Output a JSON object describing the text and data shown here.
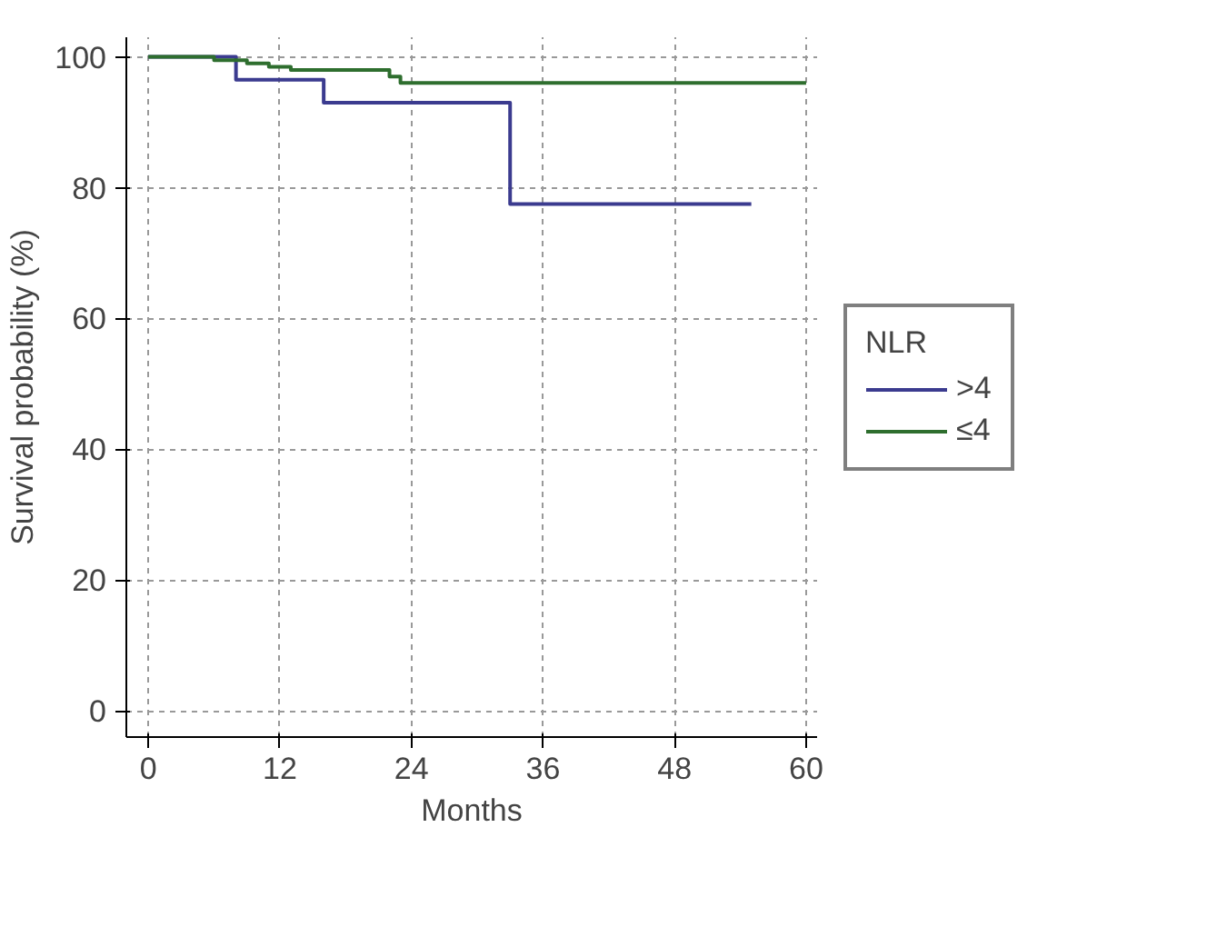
{
  "chart_data": {
    "type": "step",
    "xlabel": "Months",
    "ylabel": "Survival probability (%)",
    "legend_title": "NLR",
    "legend": "right",
    "grid": true,
    "xlim": [
      -2,
      61
    ],
    "ylim": [
      -4,
      103
    ],
    "xticks": [
      0,
      12,
      24,
      36,
      48,
      60
    ],
    "yticks": [
      0,
      20,
      40,
      60,
      80,
      100
    ],
    "series": [
      {
        "name": ">4",
        "color": "#3b3b8f",
        "x": [
          0,
          8,
          16,
          33,
          55
        ],
        "values": [
          100,
          96.5,
          93,
          77.5,
          77.5
        ]
      },
      {
        "name": "≤4",
        "color": "#2e6e2e",
        "x": [
          0,
          6,
          9,
          11,
          13,
          22,
          23,
          60
        ],
        "values": [
          100,
          99.5,
          99,
          98.5,
          98,
          97,
          96,
          96
        ]
      }
    ]
  }
}
